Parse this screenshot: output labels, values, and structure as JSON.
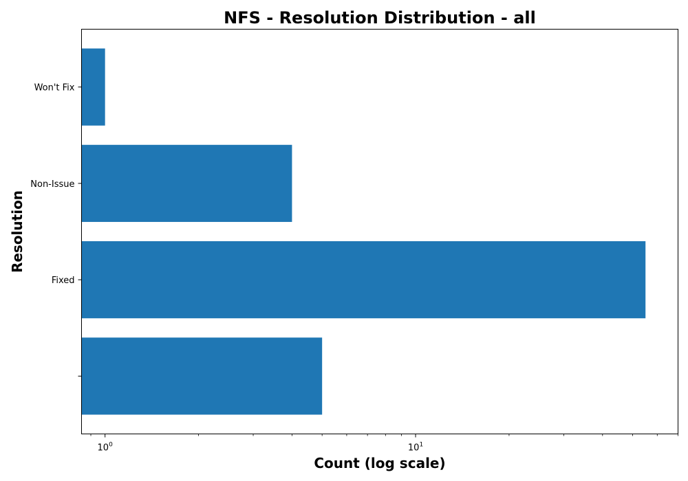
{
  "chart_data": {
    "type": "bar",
    "orientation": "horizontal",
    "title": "NFS - Resolution Distribution - all",
    "xlabel": "Count (log scale)",
    "ylabel": "Resolution",
    "xscale": "log",
    "xlim": [
      0.84,
      70
    ],
    "categories": [
      "",
      "Fixed",
      "Non-Issue",
      "Won't Fix"
    ],
    "values": [
      5,
      55,
      4,
      1
    ],
    "color": "#1f77b4",
    "grid": false,
    "x_ticks": [
      {
        "base": "10",
        "exp": "0",
        "value": 1
      },
      {
        "base": "10",
        "exp": "1",
        "value": 10
      }
    ]
  }
}
